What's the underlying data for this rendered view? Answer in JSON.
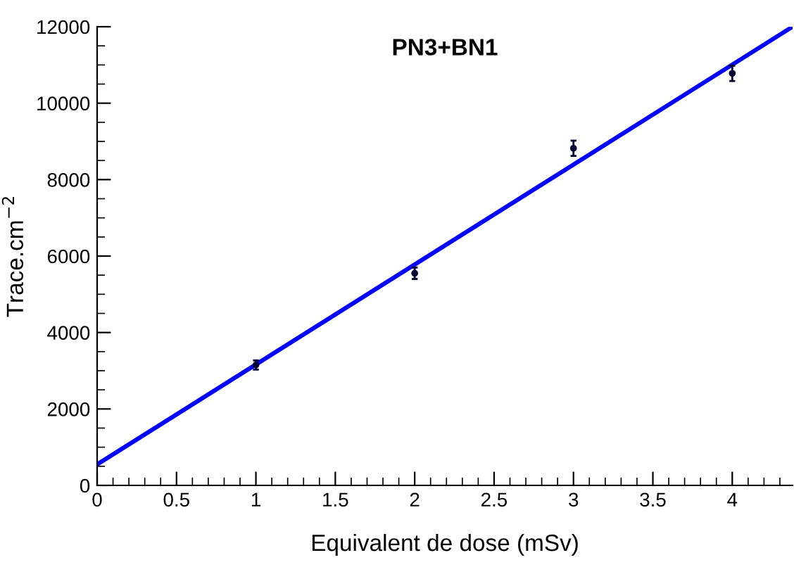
{
  "chart_data": {
    "type": "scatter",
    "title": "PN3+BN1",
    "xlabel": "Equivalent de dose (mSv)",
    "ylabel": "Trace.cm$^{−2}$",
    "xlim": [
      0,
      4.38
    ],
    "ylim": [
      0,
      12000
    ],
    "xticks": [
      0,
      0.5,
      1,
      1.5,
      2,
      2.5,
      3,
      3.5,
      4
    ],
    "yticks": [
      0,
      2000,
      4000,
      6000,
      8000,
      10000,
      12000
    ],
    "grid": false,
    "legend": false,
    "series": [
      {
        "color": "#000033",
        "marker": "circle",
        "x": [
          1,
          2,
          3,
          4
        ],
        "values": [
          3150,
          5550,
          8820,
          10780
        ],
        "errors": [
          120,
          150,
          200,
          200
        ]
      },
      {
        "type": "line",
        "color": "#0000ff",
        "marker": "none",
        "line_style": "solid",
        "x": [
          0,
          4.38
        ],
        "values": [
          550,
          12000
        ]
      }
    ]
  }
}
